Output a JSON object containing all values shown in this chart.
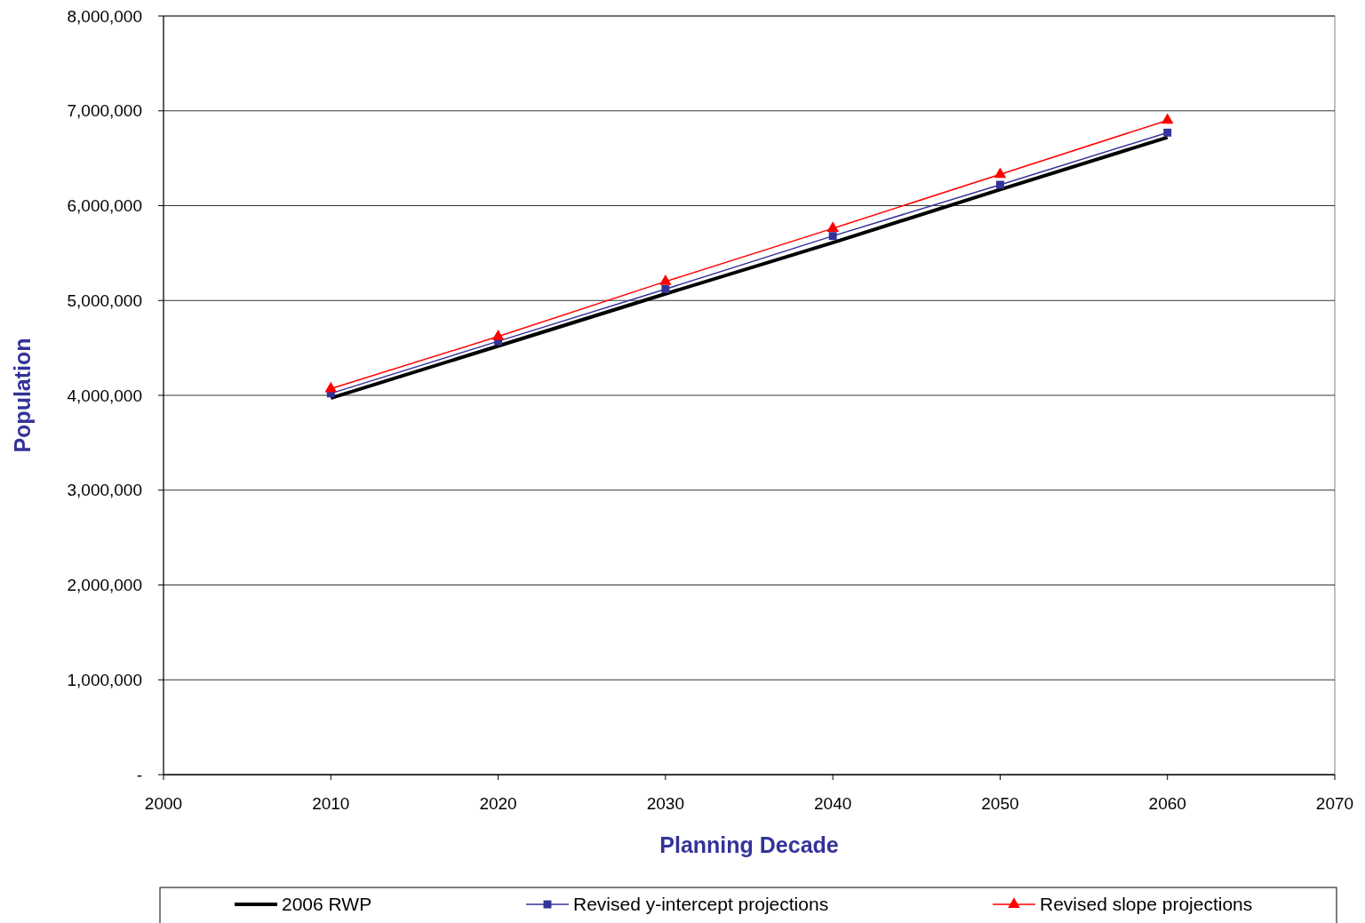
{
  "chart_data": {
    "type": "line",
    "xlabel": "Planning Decade",
    "ylabel": "Population",
    "x": [
      2010,
      2020,
      2030,
      2040,
      2050,
      2060
    ],
    "series": [
      {
        "name": "2006 RWP",
        "color": "#000000",
        "marker": "none",
        "values": [
          3970000,
          4520000,
          5070000,
          5610000,
          6170000,
          6720000
        ]
      },
      {
        "name": "Revised y-intercept projections",
        "color": "#333399",
        "marker": "square",
        "values": [
          4020000,
          4570000,
          5120000,
          5680000,
          6220000,
          6770000
        ]
      },
      {
        "name": "Revised slope projections",
        "color": "#ff0000",
        "marker": "triangle",
        "values": [
          4070000,
          4620000,
          5200000,
          5760000,
          6330000,
          6900000
        ]
      }
    ],
    "xlim": [
      2000,
      2070
    ],
    "xticks": [
      2000,
      2010,
      2020,
      2030,
      2040,
      2050,
      2060,
      2070
    ],
    "ylim": [
      0,
      8000000
    ],
    "yticks": [
      {
        "value": 0,
        "label": "-"
      },
      {
        "value": 1000000,
        "label": "1,000,000"
      },
      {
        "value": 2000000,
        "label": "2,000,000"
      },
      {
        "value": 3000000,
        "label": "3,000,000"
      },
      {
        "value": 4000000,
        "label": "4,000,000"
      },
      {
        "value": 5000000,
        "label": "5,000,000"
      },
      {
        "value": 6000000,
        "label": "6,000,000"
      },
      {
        "value": 7000000,
        "label": "7,000,000"
      },
      {
        "value": 8000000,
        "label": "8,000,000"
      }
    ],
    "grid": "y",
    "legend": "bottom",
    "line_style": "solid"
  }
}
